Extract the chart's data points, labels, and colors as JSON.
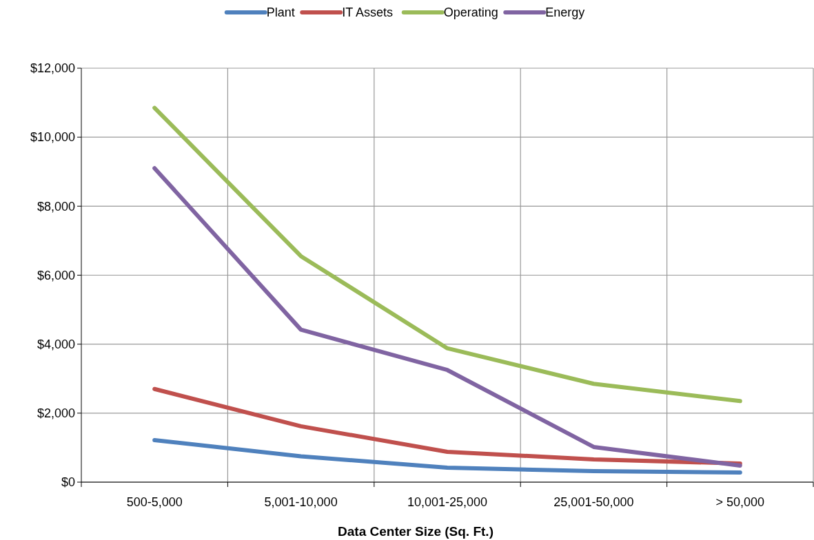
{
  "chart_data": {
    "type": "line",
    "xlabel": "Data Center Size (Sq. Ft.)",
    "categories": [
      "500-5,000",
      "5,001-10,000",
      "10,001-25,000",
      "25,001-50,000",
      "> 50,000"
    ],
    "series": [
      {
        "name": "Plant",
        "color": "#4f81bd",
        "values": [
          1220,
          750,
          420,
          320,
          280
        ]
      },
      {
        "name": "IT Assets",
        "color": "#c0504d",
        "values": [
          2700,
          1620,
          880,
          660,
          540
        ]
      },
      {
        "name": "Operating",
        "color": "#9bbb59",
        "values": [
          10850,
          6550,
          3880,
          2850,
          2350
        ]
      },
      {
        "name": "Energy",
        "color": "#8064a2",
        "values": [
          9100,
          4420,
          3250,
          1020,
          480
        ]
      }
    ],
    "ylim": [
      0,
      12000
    ],
    "yticks": [
      {
        "value": 0,
        "label": "$0"
      },
      {
        "value": 2000,
        "label": "$2,000"
      },
      {
        "value": 4000,
        "label": "$4,000"
      },
      {
        "value": 6000,
        "label": "$6,000"
      },
      {
        "value": 8000,
        "label": "$8,000"
      },
      {
        "value": 10000,
        "label": "$10,000"
      },
      {
        "value": 12000,
        "label": "$12,000"
      }
    ],
    "grid": true,
    "legend": "top",
    "marker": "none",
    "line_style": "solid"
  }
}
